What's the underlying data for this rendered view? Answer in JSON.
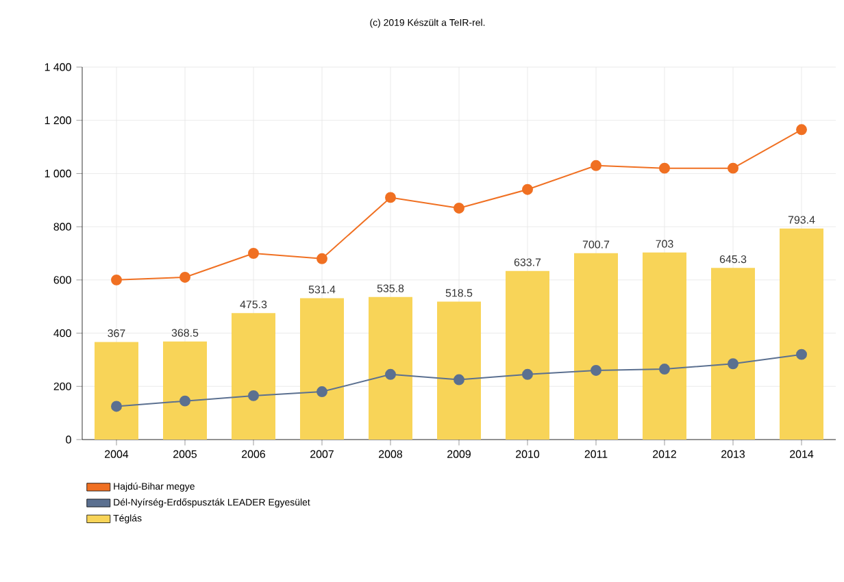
{
  "chart_data": {
    "type": "bar",
    "annotations": [
      "(c) 2019 Készült a TeIR-rel."
    ],
    "categories": [
      "2004",
      "2005",
      "2006",
      "2007",
      "2008",
      "2009",
      "2010",
      "2011",
      "2012",
      "2013",
      "2014"
    ],
    "series": [
      {
        "name": "Hajdú-Bihar megye",
        "type": "line",
        "color": "#f07022",
        "values": [
          600,
          610,
          700,
          680,
          910,
          870,
          940,
          1030,
          1020,
          1020,
          1165
        ]
      },
      {
        "name": "Dél-Nyírség-Erdőspuszták LEADER Egyesület",
        "type": "line",
        "color": "#5b7090",
        "values": [
          125,
          145,
          165,
          180,
          245,
          225,
          245,
          260,
          265,
          285,
          320
        ]
      },
      {
        "name": "Téglás",
        "color": "#f8d458",
        "values": [
          367,
          368.5,
          475.3,
          531.4,
          535.8,
          518.5,
          633.7,
          700.7,
          703,
          645.3,
          793.4
        ],
        "value_labels": [
          "367",
          "368.5",
          "475.3",
          "531.4",
          "535.8",
          "518.5",
          "633.7",
          "700.7",
          "703",
          "645.3",
          "793.4"
        ]
      }
    ],
    "ylim": [
      0,
      1400
    ],
    "yticks": [
      0,
      200,
      400,
      600,
      800,
      {
        "value": 1000,
        "label": "1 000"
      },
      {
        "value": 1200,
        "label": "1 200"
      },
      {
        "value": 1400,
        "label": "1 400"
      }
    ],
    "grid": true,
    "legend": "bottom left",
    "marker": "circle"
  }
}
